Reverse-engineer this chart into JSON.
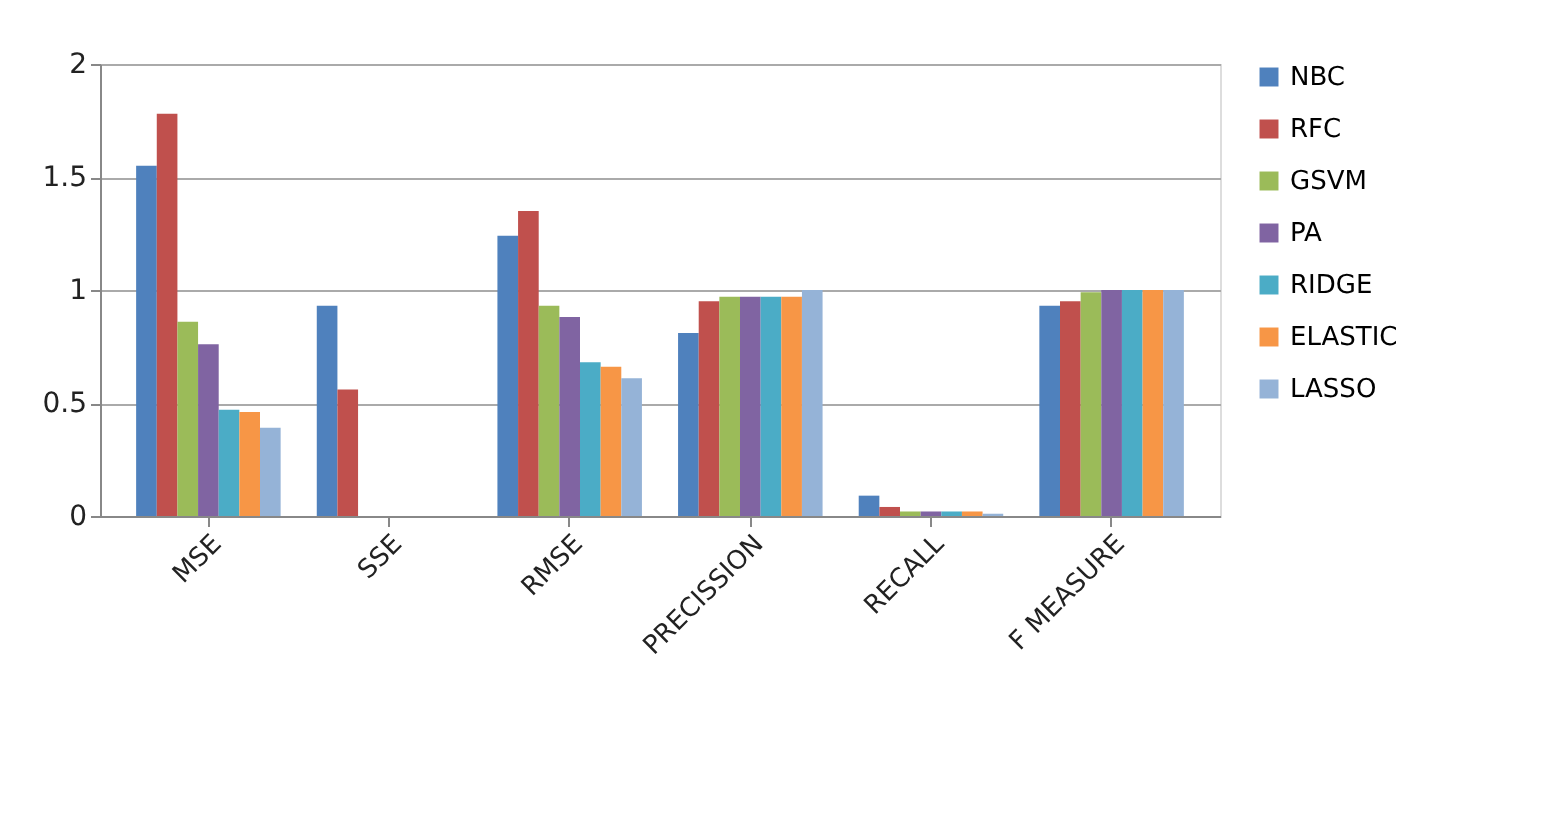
{
  "chart_data": {
    "type": "bar",
    "categories": [
      "MSE",
      "SSE",
      "RMSE",
      "PRECISSION",
      "RECALL",
      "F MEASURE"
    ],
    "series": [
      {
        "name": "NBC",
        "color": "#4f81bd",
        "values": [
          1.55,
          0.93,
          1.24,
          0.81,
          0.09,
          0.93
        ]
      },
      {
        "name": "RFC",
        "color": "#c0504d",
        "values": [
          1.78,
          0.56,
          1.35,
          0.95,
          0.04,
          0.95
        ]
      },
      {
        "name": "GSVM",
        "color": "#9bbb59",
        "values": [
          0.86,
          0,
          0.93,
          0.97,
          0.02,
          0.99
        ]
      },
      {
        "name": "PA",
        "color": "#8064a2",
        "values": [
          0.76,
          0,
          0.88,
          0.97,
          0.02,
          1.0
        ]
      },
      {
        "name": "RIDGE",
        "color": "#4bacc6",
        "values": [
          0.47,
          0,
          0.68,
          0.97,
          0.02,
          1.0
        ]
      },
      {
        "name": "ELASTIC",
        "color": "#f79646",
        "values": [
          0.46,
          0,
          0.66,
          0.97,
          0.02,
          1.0
        ]
      },
      {
        "name": "LASSO",
        "color": "#95b3d7",
        "values": [
          0.39,
          0,
          0.61,
          1.0,
          0.01,
          1.0
        ]
      }
    ],
    "ylim": [
      0,
      2
    ],
    "yticks": [
      0,
      0.5,
      1,
      1.5,
      2
    ],
    "grid": "y",
    "legend": "right"
  }
}
